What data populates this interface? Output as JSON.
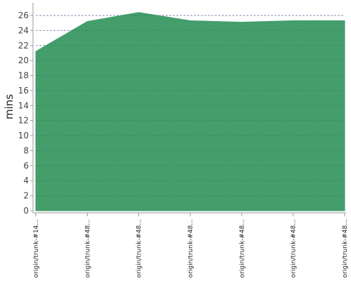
{
  "chart_data": {
    "type": "area",
    "title": "",
    "xlabel": "",
    "ylabel": "mins",
    "categories": [
      "origin/trunk-#14...",
      "origin/trunk-#48...",
      "origin/trunk-#48...",
      "origin/trunk-#48...",
      "origin/trunk-#48...",
      "origin/trunk-#48...",
      "origin/trunk-#48..."
    ],
    "series": [
      {
        "values": [
          21.2,
          25.2,
          26.4,
          25.3,
          25.1,
          25.3,
          25.3
        ],
        "color": "#449e6b"
      }
    ],
    "ylim": [
      0,
      26
    ],
    "yticks": [
      0,
      2,
      4,
      6,
      8,
      10,
      12,
      14,
      16,
      18,
      20,
      22,
      24,
      26
    ],
    "grid": true,
    "legend": "none"
  }
}
